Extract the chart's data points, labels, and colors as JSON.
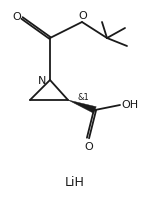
{
  "background_color": "#ffffff",
  "line_color": "#1a1a1a",
  "line_width": 1.3,
  "font_size": 7.5,
  "label_LiH": "LiH",
  "label_N": "N",
  "label_O1": "O",
  "label_O2": "O",
  "label_OH": "OH",
  "label_O3": "O",
  "label_stereo": "&1",
  "fig_width": 1.5,
  "fig_height": 2.08,
  "dpi": 100,
  "xlim": [
    0,
    150
  ],
  "ylim": [
    0,
    208
  ]
}
